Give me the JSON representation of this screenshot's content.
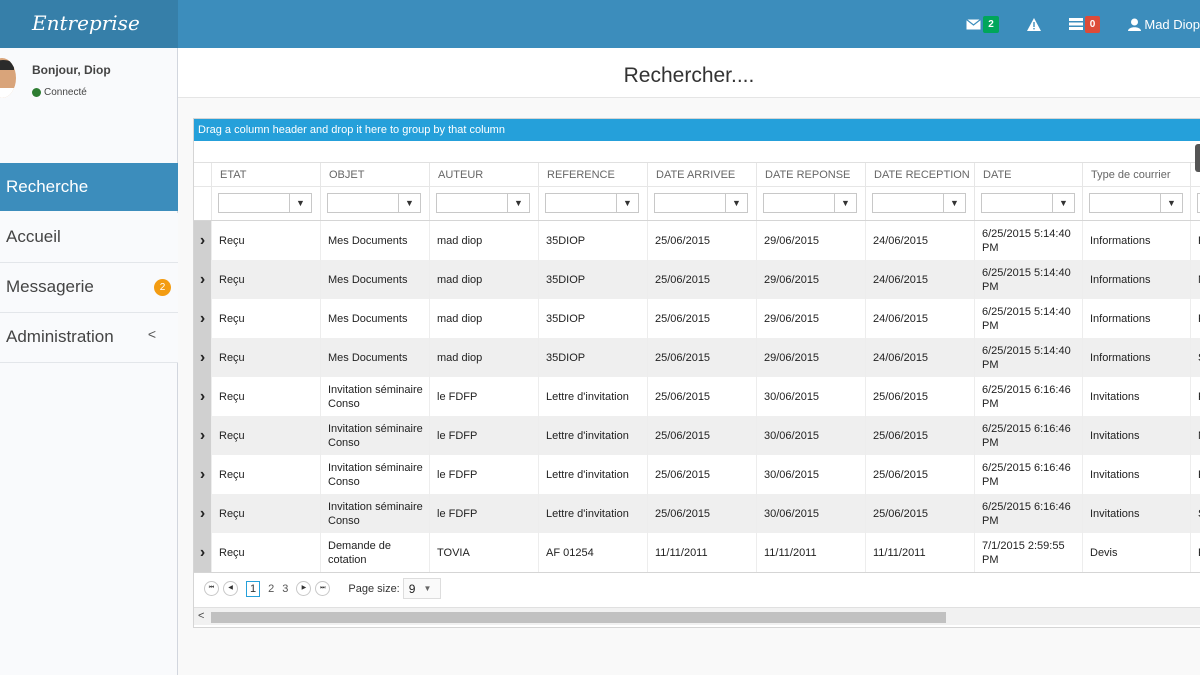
{
  "brand": "Entreprise",
  "topnav": {
    "messages_count": "2",
    "notifications_count": "0",
    "user_name": "Mad Diop"
  },
  "sidebar": {
    "greeting": "Bonjour, Diop",
    "status": "Connecté",
    "items": [
      {
        "label": "Recherche",
        "active": true
      },
      {
        "label": "Accueil"
      },
      {
        "label": "Messagerie",
        "badge": "2"
      },
      {
        "label": "Administration",
        "chevron": "<"
      }
    ]
  },
  "page_title": "Rechercher....",
  "grid": {
    "group_hint": "Drag a column header and drop it here to group by that column",
    "columns": [
      "ETAT",
      "OBJET",
      "AUTEUR",
      "REFERENCE",
      "DATE ARRIVEE",
      "DATE REPONSE",
      "DATE RECEPTION",
      "DATE",
      "Type de courrier"
    ],
    "rows": [
      {
        "etat": "Reçu",
        "objet": "Mes Documents",
        "auteur": "mad diop",
        "reference": "35DIOP",
        "date_arrivee": "25/06/2015",
        "date_reponse": "29/06/2015",
        "date_reception": "24/06/2015",
        "date": "6/25/2015 5:14:40 PM",
        "type": "Informations",
        "next": "F"
      },
      {
        "etat": "Reçu",
        "objet": "Mes Documents",
        "auteur": "mad diop",
        "reference": "35DIOP",
        "date_arrivee": "25/06/2015",
        "date_reponse": "29/06/2015",
        "date_reception": "24/06/2015",
        "date": "6/25/2015 5:14:40 PM",
        "type": "Informations",
        "next": "N"
      },
      {
        "etat": "Reçu",
        "objet": "Mes Documents",
        "auteur": "mad diop",
        "reference": "35DIOP",
        "date_arrivee": "25/06/2015",
        "date_reponse": "29/06/2015",
        "date_reception": "24/06/2015",
        "date": "6/25/2015 5:14:40 PM",
        "type": "Informations",
        "next": "F"
      },
      {
        "etat": "Reçu",
        "objet": "Mes Documents",
        "auteur": "mad diop",
        "reference": "35DIOP",
        "date_arrivee": "25/06/2015",
        "date_reponse": "29/06/2015",
        "date_reception": "24/06/2015",
        "date": "6/25/2015 5:14:40 PM",
        "type": "Informations",
        "next": "S"
      },
      {
        "etat": "Reçu",
        "objet": "Invitation séminaire Conso",
        "auteur": "le FDFP",
        "reference": "Lettre d'invitation",
        "date_arrivee": "25/06/2015",
        "date_reponse": "30/06/2015",
        "date_reception": "25/06/2015",
        "date": "6/25/2015 6:16:46 PM",
        "type": "Invitations",
        "next": "F"
      },
      {
        "etat": "Reçu",
        "objet": "Invitation séminaire Conso",
        "auteur": "le FDFP",
        "reference": "Lettre d'invitation",
        "date_arrivee": "25/06/2015",
        "date_reponse": "30/06/2015",
        "date_reception": "25/06/2015",
        "date": "6/25/2015 6:16:46 PM",
        "type": "Invitations",
        "next": "N"
      },
      {
        "etat": "Reçu",
        "objet": "Invitation séminaire Conso",
        "auteur": "le FDFP",
        "reference": "Lettre d'invitation",
        "date_arrivee": "25/06/2015",
        "date_reponse": "30/06/2015",
        "date_reception": "25/06/2015",
        "date": "6/25/2015 6:16:46 PM",
        "type": "Invitations",
        "next": "F"
      },
      {
        "etat": "Reçu",
        "objet": "Invitation séminaire Conso",
        "auteur": "le FDFP",
        "reference": "Lettre d'invitation",
        "date_arrivee": "25/06/2015",
        "date_reponse": "30/06/2015",
        "date_reception": "25/06/2015",
        "date": "6/25/2015 6:16:46 PM",
        "type": "Invitations",
        "next": "S"
      },
      {
        "etat": "Reçu",
        "objet": "Demande de cotation",
        "auteur": "TOVIA",
        "reference": "AF 01254",
        "date_arrivee": "11/11/2011",
        "date_reponse": "11/11/2011",
        "date_reception": "11/11/2011",
        "date": "7/1/2015 2:59:55 PM",
        "type": "Devis",
        "next": "F"
      }
    ],
    "filter_icon": "funnel-icon",
    "expand_icon": "chevron-right-icon"
  },
  "pager": {
    "pages": [
      "1",
      "2",
      "3"
    ],
    "current_page": "1",
    "page_size_label": "Page size:",
    "page_size": "9"
  },
  "colors": {
    "topbar": "#3c8dbc",
    "brand_bg": "#367fa9",
    "group_bar": "#25a0da",
    "badge_green": "#00a65a",
    "badge_red": "#dd4b39",
    "badge_orange": "#f39c12"
  }
}
